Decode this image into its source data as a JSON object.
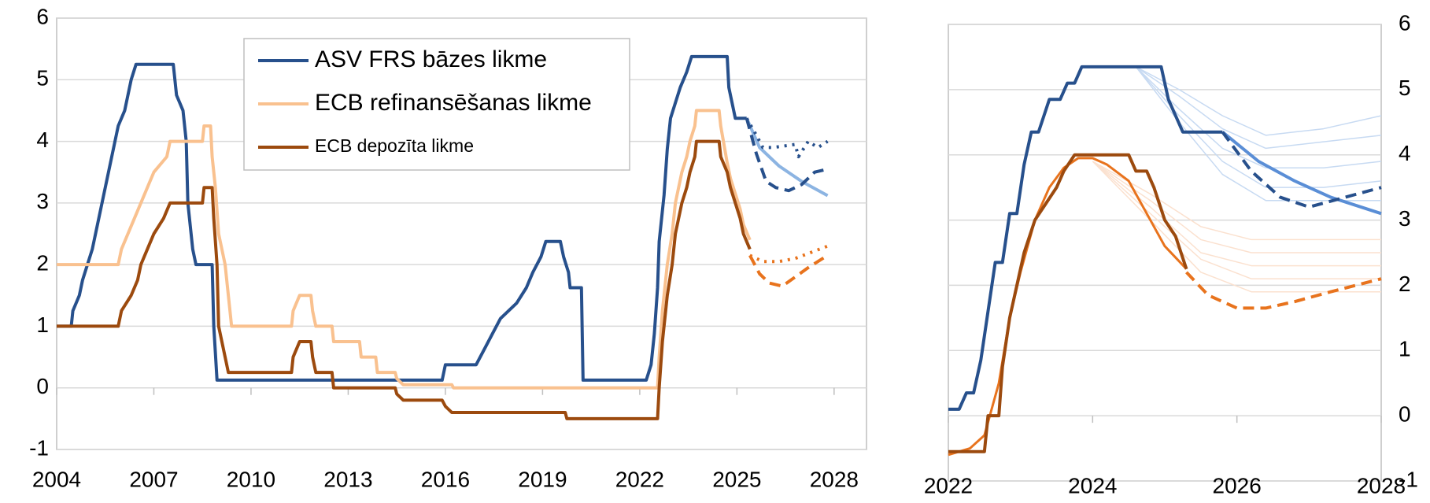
{
  "chart_data": [
    {
      "type": "line",
      "xlim": [
        2004,
        2029
      ],
      "xticks": [
        2004,
        2007,
        2010,
        2013,
        2016,
        2019,
        2022,
        2025,
        2028
      ],
      "ylim": [
        -1,
        6
      ],
      "yticks": [
        -1,
        0,
        1,
        2,
        3,
        4,
        5,
        6
      ],
      "grid": true,
      "yaxis_position": "left",
      "legend": "top",
      "series": [
        {
          "name": "ASV FRS bāzes likme",
          "color": "#27508c",
          "width": 4,
          "x": [
            2004.0,
            2004.45,
            2004.5,
            2004.7,
            2004.8,
            2004.95,
            2005.1,
            2005.3,
            2005.5,
            2005.7,
            2005.9,
            2006.1,
            2006.3,
            2006.45,
            2007.6,
            2007.7,
            2007.9,
            2008.0,
            2008.05,
            2008.2,
            2008.3,
            2008.8,
            2008.85,
            2008.95,
            2015.9,
            2016.0,
            2016.95,
            2017.2,
            2017.45,
            2017.7,
            2018.2,
            2018.5,
            2018.7,
            2018.95,
            2019.1,
            2019.55,
            2019.65,
            2019.8,
            2019.85,
            2020.2,
            2020.25,
            2022.2,
            2022.35,
            2022.45,
            2022.55,
            2022.6,
            2022.75,
            2022.85,
            2022.95,
            2023.1,
            2023.25,
            2023.45,
            2023.6,
            2024.7,
            2024.75,
            2024.85,
            2024.95,
            2025.3
          ],
          "values": [
            1.0,
            1.0,
            1.25,
            1.5,
            1.75,
            2.0,
            2.25,
            2.75,
            3.25,
            3.75,
            4.25,
            4.5,
            5.0,
            5.25,
            5.25,
            4.75,
            4.5,
            4.0,
            3.0,
            2.25,
            2.0,
            2.0,
            1.0,
            0.125,
            0.125,
            0.375,
            0.375,
            0.625,
            0.875,
            1.125,
            1.375,
            1.625,
            1.875,
            2.125,
            2.375,
            2.375,
            2.125,
            1.875,
            1.625,
            1.625,
            0.125,
            0.125,
            0.375,
            0.875,
            1.625,
            2.375,
            3.125,
            3.875,
            4.375,
            4.625,
            4.875,
            5.125,
            5.375,
            5.375,
            4.875,
            4.625,
            4.375,
            4.375
          ]
        },
        {
          "name": "ECB refinansēšanas likme",
          "color": "#f9c18f",
          "width": 4,
          "x": [
            2004.0,
            2005.9,
            2006.0,
            2006.2,
            2006.4,
            2006.6,
            2006.8,
            2007.0,
            2007.4,
            2007.5,
            2008.5,
            2008.55,
            2008.75,
            2008.8,
            2008.9,
            2009.0,
            2009.2,
            2009.3,
            2009.4,
            2011.25,
            2011.3,
            2011.5,
            2011.85,
            2011.9,
            2012.0,
            2012.5,
            2012.55,
            2013.35,
            2013.4,
            2013.85,
            2013.9,
            2014.45,
            2014.5,
            2014.7,
            2016.2,
            2016.25,
            2022.55,
            2022.6,
            2022.7,
            2022.85,
            2023.0,
            2023.1,
            2023.3,
            2023.45,
            2023.55,
            2023.7,
            2023.75,
            2024.45,
            2024.5,
            2024.7,
            2024.8,
            2024.95,
            2025.1,
            2025.2,
            2025.4
          ],
          "values": [
            2.0,
            2.0,
            2.25,
            2.5,
            2.75,
            3.0,
            3.25,
            3.5,
            3.75,
            4.0,
            4.0,
            4.25,
            4.25,
            3.75,
            3.25,
            2.5,
            2.0,
            1.5,
            1.0,
            1.0,
            1.25,
            1.5,
            1.5,
            1.25,
            1.0,
            1.0,
            0.75,
            0.75,
            0.5,
            0.5,
            0.25,
            0.25,
            0.15,
            0.05,
            0.05,
            0.0,
            0.0,
            0.5,
            1.25,
            2.0,
            2.5,
            3.0,
            3.5,
            3.75,
            4.0,
            4.25,
            4.5,
            4.5,
            4.25,
            3.65,
            3.4,
            3.15,
            2.9,
            2.65,
            2.4
          ]
        },
        {
          "name": "ECB depozīta likme",
          "color": "#9c4a0e",
          "width": 4,
          "legend_size": "small",
          "x": [
            2004.0,
            2005.9,
            2006.0,
            2006.3,
            2006.5,
            2006.6,
            2006.8,
            2007.0,
            2007.3,
            2007.5,
            2008.5,
            2008.55,
            2008.8,
            2008.85,
            2008.95,
            2009.0,
            2009.2,
            2009.3,
            2011.25,
            2011.3,
            2011.5,
            2011.85,
            2011.9,
            2012.0,
            2012.5,
            2012.55,
            2014.45,
            2014.5,
            2014.7,
            2015.9,
            2016.0,
            2016.2,
            2019.7,
            2019.75,
            2022.55,
            2022.6,
            2022.7,
            2022.85,
            2023.0,
            2023.1,
            2023.3,
            2023.45,
            2023.55,
            2023.7,
            2023.75,
            2024.45,
            2024.5,
            2024.7,
            2024.8,
            2024.95,
            2025.1,
            2025.2,
            2025.4
          ],
          "values": [
            1.0,
            1.0,
            1.25,
            1.5,
            1.75,
            2.0,
            2.25,
            2.5,
            2.75,
            3.0,
            3.0,
            3.25,
            3.25,
            2.75,
            2.0,
            1.0,
            0.5,
            0.25,
            0.25,
            0.5,
            0.75,
            0.75,
            0.5,
            0.25,
            0.25,
            0.0,
            0.0,
            -0.1,
            -0.2,
            -0.2,
            -0.3,
            -0.4,
            -0.4,
            -0.5,
            -0.5,
            0.0,
            0.75,
            1.5,
            2.0,
            2.5,
            3.0,
            3.25,
            3.5,
            3.75,
            4.0,
            4.0,
            3.75,
            3.5,
            3.25,
            3.0,
            2.75,
            2.5,
            2.25
          ]
        },
        {
          "color": "#8cb4e2",
          "width": 4,
          "x": [
            2025.3,
            2025.7,
            2026.3,
            2027.0,
            2027.8
          ],
          "values": [
            4.375,
            3.9,
            3.6,
            3.35,
            3.12
          ]
        },
        {
          "color": "#27508c",
          "width": 4,
          "style": "dotted",
          "x": [
            2025.3,
            2025.6,
            2025.8,
            2026.1,
            2026.4,
            2026.8,
            2026.9,
            2027.2,
            2027.5,
            2027.8
          ],
          "values": [
            4.375,
            4.1,
            3.9,
            3.9,
            3.92,
            3.95,
            3.75,
            4.0,
            3.9,
            4.0
          ]
        },
        {
          "color": "#27508c",
          "width": 4,
          "style": "dashed",
          "x": [
            2025.3,
            2025.6,
            2025.9,
            2026.2,
            2026.6,
            2027.0,
            2027.4,
            2027.8
          ],
          "values": [
            4.375,
            3.8,
            3.35,
            3.25,
            3.2,
            3.3,
            3.5,
            3.55
          ]
        },
        {
          "color": "#e8731d",
          "width": 4,
          "style": "dotted",
          "x": [
            2025.4,
            2025.8,
            2026.3,
            2026.8,
            2027.3,
            2027.8
          ],
          "values": [
            2.15,
            2.05,
            2.05,
            2.1,
            2.2,
            2.3
          ]
        },
        {
          "color": "#e8731d",
          "width": 4,
          "style": "dashed",
          "x": [
            2025.4,
            2025.7,
            2026.0,
            2026.4,
            2026.8,
            2027.2,
            2027.8
          ],
          "values": [
            2.15,
            1.85,
            1.7,
            1.65,
            1.8,
            1.95,
            2.15
          ]
        }
      ]
    },
    {
      "type": "line",
      "xlim": [
        2022,
        2028
      ],
      "xticks": [
        2022,
        2024,
        2026,
        2028
      ],
      "ylim": [
        -1,
        6
      ],
      "yticks": [
        -1,
        0,
        1,
        2,
        3,
        4,
        5,
        6
      ],
      "grid": true,
      "yaxis_position": "right",
      "series": [
        {
          "color": "#c7daf2",
          "width": 1.5,
          "x": [
            2024.6,
            2025.2,
            2025.8,
            2026.4,
            2027.2,
            2028
          ],
          "values": [
            5.35,
            5.0,
            4.6,
            4.3,
            4.4,
            4.6
          ]
        },
        {
          "color": "#c7daf2",
          "width": 1.5,
          "x": [
            2024.6,
            2025.2,
            2025.8,
            2026.4,
            2027.2,
            2028
          ],
          "values": [
            5.35,
            4.9,
            4.4,
            4.1,
            4.2,
            4.3
          ]
        },
        {
          "color": "#c7daf2",
          "width": 1.5,
          "x": [
            2024.6,
            2025.2,
            2025.8,
            2026.4,
            2027.2,
            2028
          ],
          "values": [
            5.35,
            4.7,
            4.1,
            3.8,
            3.8,
            3.9
          ]
        },
        {
          "color": "#c7daf2",
          "width": 1.5,
          "x": [
            2024.6,
            2025.2,
            2025.8,
            2026.4,
            2027.2,
            2028
          ],
          "values": [
            5.35,
            4.6,
            3.9,
            3.5,
            3.5,
            3.6
          ]
        },
        {
          "color": "#c7daf2",
          "width": 1.5,
          "x": [
            2024.6,
            2025.2,
            2025.8,
            2026.4,
            2027.2,
            2028
          ],
          "values": [
            5.35,
            4.5,
            3.7,
            3.3,
            3.3,
            3.3
          ]
        },
        {
          "color": "#fbe1cf",
          "width": 1.5,
          "x": [
            2024.0,
            2024.8,
            2025.5,
            2026.2,
            2027.0,
            2028
          ],
          "values": [
            3.9,
            3.4,
            2.9,
            2.7,
            2.7,
            2.7
          ]
        },
        {
          "color": "#fbe1cf",
          "width": 1.5,
          "x": [
            2024.0,
            2024.8,
            2025.5,
            2026.2,
            2027.0,
            2028
          ],
          "values": [
            3.9,
            3.3,
            2.7,
            2.5,
            2.5,
            2.5
          ]
        },
        {
          "color": "#fbe1cf",
          "width": 1.5,
          "x": [
            2024.0,
            2024.8,
            2025.5,
            2026.2,
            2027.0,
            2028
          ],
          "values": [
            3.9,
            3.2,
            2.5,
            2.3,
            2.3,
            2.3
          ]
        },
        {
          "color": "#fbe1cf",
          "width": 1.5,
          "x": [
            2024.0,
            2024.8,
            2025.5,
            2026.2,
            2027.0,
            2028
          ],
          "values": [
            3.9,
            3.1,
            2.4,
            2.1,
            2.1,
            2.1
          ]
        },
        {
          "color": "#fbe1cf",
          "width": 1.5,
          "x": [
            2024.0,
            2024.8,
            2025.5,
            2026.2,
            2027.0,
            2028
          ],
          "values": [
            3.9,
            3.0,
            2.2,
            1.9,
            1.9,
            1.9
          ]
        },
        {
          "color": "#27508c",
          "width": 4,
          "x": [
            2022.0,
            2022.15,
            2022.25,
            2022.35,
            2022.45,
            2022.55,
            2022.65,
            2022.75,
            2022.85,
            2022.95,
            2023.05,
            2023.15,
            2023.25,
            2023.4,
            2023.55,
            2023.65,
            2023.75,
            2023.85,
            2024.95,
            2025.05,
            2025.15,
            2025.25,
            2025.8
          ],
          "values": [
            0.1,
            0.1,
            0.35,
            0.35,
            0.85,
            1.6,
            2.35,
            2.35,
            3.1,
            3.1,
            3.85,
            4.35,
            4.35,
            4.85,
            4.85,
            5.1,
            5.1,
            5.35,
            5.35,
            4.85,
            4.6,
            4.35,
            4.35
          ]
        },
        {
          "color": "#5a8ed6",
          "width": 4,
          "x": [
            2025.8,
            2026.3,
            2026.8,
            2027.3,
            2028
          ],
          "values": [
            4.35,
            3.9,
            3.6,
            3.35,
            3.1
          ]
        },
        {
          "color": "#27508c",
          "width": 4,
          "style": "dashed",
          "x": [
            2025.8,
            2026.2,
            2026.6,
            2027.0,
            2027.5,
            2028
          ],
          "values": [
            4.35,
            3.75,
            3.35,
            3.2,
            3.35,
            3.5
          ]
        },
        {
          "color": "#e8731d",
          "width": 3,
          "x": [
            2022.0,
            2022.3,
            2022.5,
            2022.7,
            2022.85,
            2023.0,
            2023.2,
            2023.4,
            2023.6,
            2023.8,
            2024.0,
            2024.2,
            2024.5,
            2024.8,
            2025.0,
            2025.3
          ],
          "values": [
            -0.6,
            -0.5,
            -0.3,
            0.5,
            1.5,
            2.2,
            3.0,
            3.5,
            3.8,
            3.95,
            3.95,
            3.85,
            3.6,
            3.0,
            2.6,
            2.25
          ]
        },
        {
          "color": "#9c4a0e",
          "width": 4,
          "x": [
            2022.0,
            2022.5,
            2022.55,
            2022.7,
            2022.75,
            2022.85,
            2022.95,
            2023.05,
            2023.2,
            2023.35,
            2023.5,
            2023.6,
            2023.75,
            2024.5,
            2024.6,
            2024.75,
            2024.85,
            2025.0,
            2025.15,
            2025.3
          ],
          "values": [
            -0.55,
            -0.55,
            0,
            0,
            0.75,
            1.5,
            2.0,
            2.5,
            3.0,
            3.25,
            3.5,
            3.75,
            4.0,
            4.0,
            3.75,
            3.75,
            3.5,
            3.0,
            2.75,
            2.25
          ]
        },
        {
          "color": "#e8731d",
          "width": 4,
          "style": "dashed",
          "x": [
            2025.3,
            2025.6,
            2026.0,
            2026.4,
            2026.8,
            2027.3,
            2028
          ],
          "values": [
            2.2,
            1.85,
            1.65,
            1.65,
            1.75,
            1.9,
            2.1
          ]
        }
      ]
    }
  ]
}
